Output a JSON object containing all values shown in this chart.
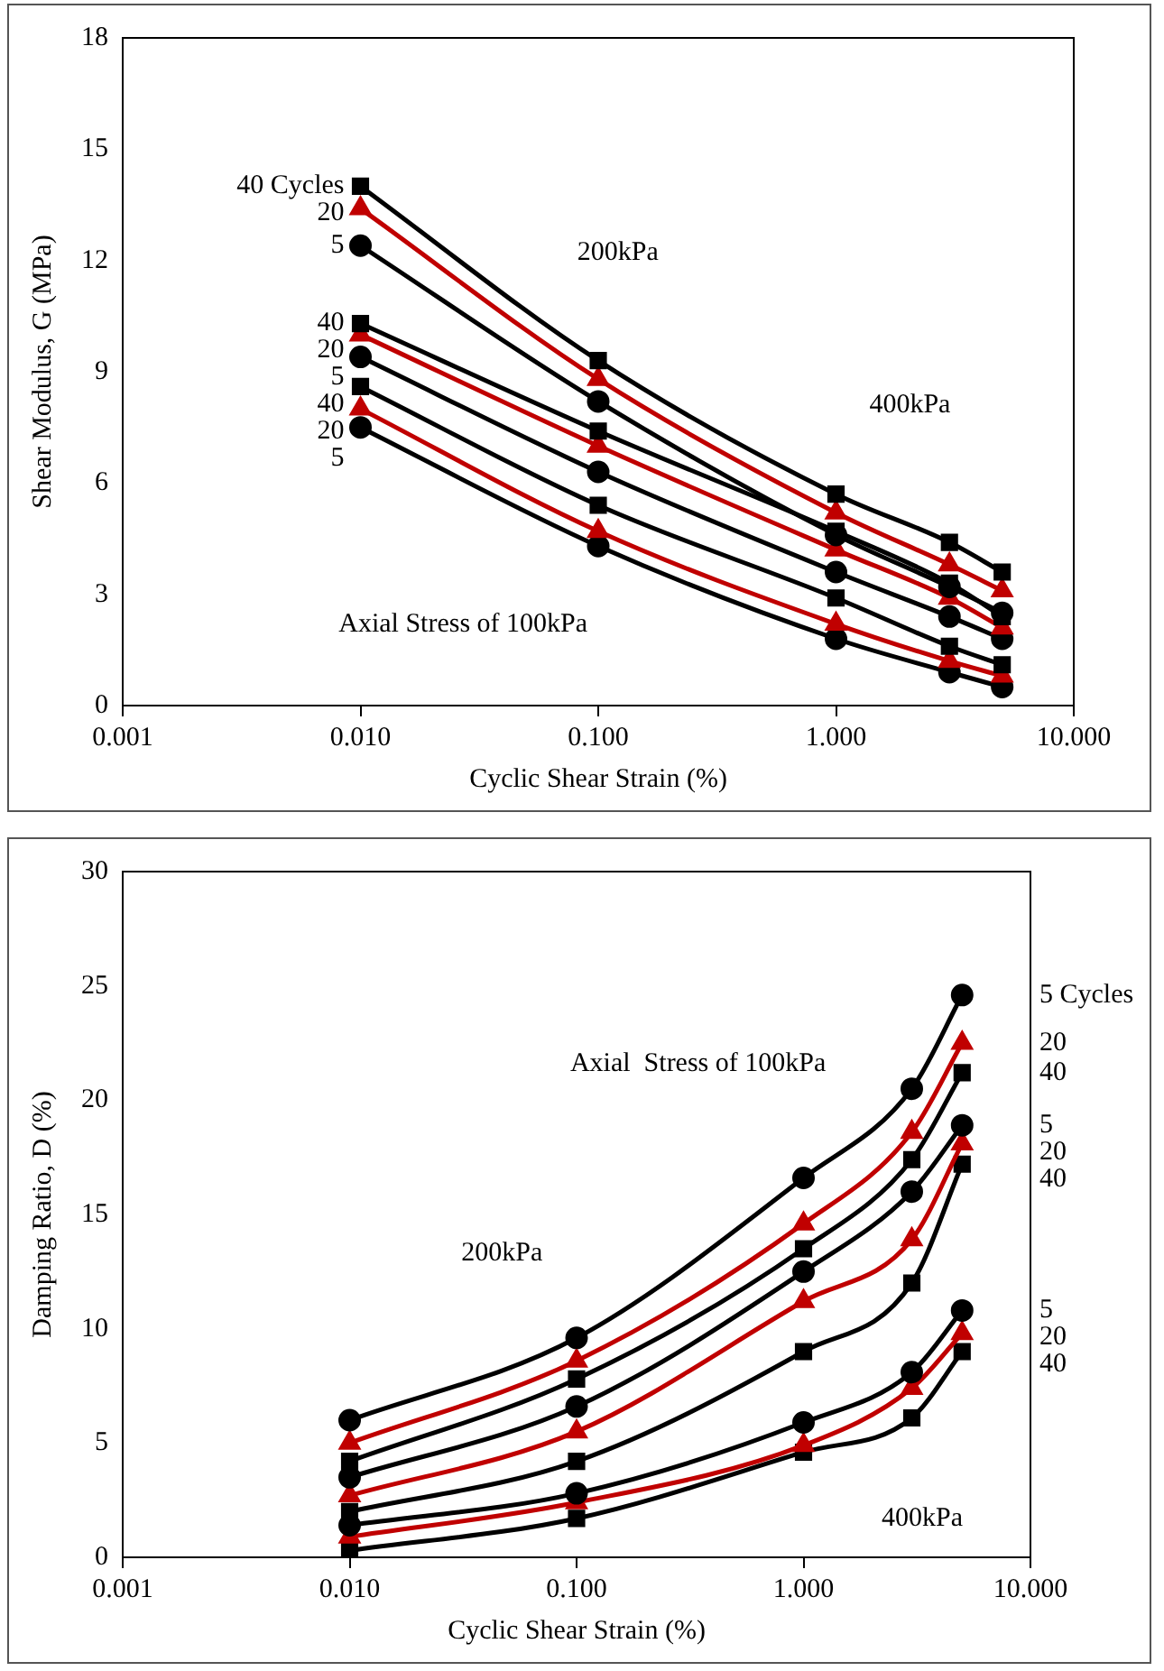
{
  "chart_data": [
    {
      "type": "line",
      "xlabel": "Cyclic Shear Strain (%)",
      "ylabel": "Shear Modulus, G (MPa)",
      "log": "x",
      "grid": false,
      "legend": false,
      "xlim": [
        0.001,
        10
      ],
      "xticks": [
        {
          "value": 0.001,
          "label": "0.001"
        },
        {
          "value": 0.01,
          "label": "0.010"
        },
        {
          "value": 0.1,
          "label": "0.100"
        },
        {
          "value": 1,
          "label": "1.000"
        },
        {
          "value": 10,
          "label": "10.000"
        }
      ],
      "ylim": [
        0,
        18
      ],
      "yticks": [
        0,
        3,
        6,
        9,
        12,
        15,
        18
      ],
      "x": [
        0.01,
        0.1,
        1,
        3,
        5
      ],
      "series": [
        {
          "name": "40 Cycles",
          "color": "#000000",
          "marker": "square",
          "values": [
            14.0,
            9.3,
            5.7,
            4.4,
            3.6
          ]
        },
        {
          "name": "20",
          "color": "#c00000",
          "marker": "triangle",
          "values": [
            13.4,
            8.8,
            5.2,
            3.8,
            3.1
          ]
        },
        {
          "name": "5",
          "color": "#000000",
          "marker": "circle",
          "values": [
            12.4,
            8.2,
            4.6,
            3.2,
            2.5
          ]
        },
        {
          "name": "40",
          "color": "#000000",
          "marker": "square",
          "values": [
            10.3,
            7.4,
            4.7,
            3.3,
            2.4
          ]
        },
        {
          "name": "20",
          "color": "#c00000",
          "marker": "triangle",
          "values": [
            10.0,
            7.0,
            4.2,
            2.9,
            2.1
          ]
        },
        {
          "name": "5",
          "color": "#000000",
          "marker": "circle",
          "values": [
            9.4,
            6.3,
            3.6,
            2.4,
            1.8
          ]
        },
        {
          "name": "40",
          "color": "#000000",
          "marker": "square",
          "values": [
            8.6,
            5.4,
            2.9,
            1.6,
            1.1
          ]
        },
        {
          "name": "20",
          "color": "#c00000",
          "marker": "triangle",
          "values": [
            8.0,
            4.7,
            2.2,
            1.2,
            0.8
          ]
        },
        {
          "name": "5",
          "color": "#000000",
          "marker": "circle",
          "values": [
            7.5,
            4.3,
            1.8,
            0.9,
            0.5
          ]
        }
      ],
      "annotations": [
        "200kPa",
        "400kPa",
        "Axial Stress of 100kPa"
      ]
    },
    {
      "type": "line",
      "xlabel": "Cyclic Shear Strain (%)",
      "ylabel": "Damping Ratio, D (%)",
      "log": "x",
      "grid": false,
      "legend": false,
      "xlim": [
        0.001,
        10
      ],
      "xticks": [
        {
          "value": 0.001,
          "label": "0.001"
        },
        {
          "value": 0.01,
          "label": "0.010"
        },
        {
          "value": 0.1,
          "label": "0.100"
        },
        {
          "value": 1,
          "label": "1.000"
        },
        {
          "value": 10,
          "label": "10.000"
        }
      ],
      "ylim": [
        0,
        30
      ],
      "yticks": [
        0,
        5,
        10,
        15,
        20,
        25,
        30
      ],
      "x": [
        0.01,
        0.1,
        1,
        3,
        5
      ],
      "series": [
        {
          "name": "5 Cycles",
          "color": "#000000",
          "marker": "circle",
          "values": [
            6.0,
            9.6,
            16.6,
            20.5,
            24.6
          ]
        },
        {
          "name": "20",
          "color": "#c00000",
          "marker": "triangle",
          "values": [
            5.0,
            8.6,
            14.6,
            18.6,
            22.5
          ]
        },
        {
          "name": "40",
          "color": "#000000",
          "marker": "square",
          "values": [
            4.2,
            7.8,
            13.5,
            17.4,
            21.2
          ]
        },
        {
          "name": "5",
          "color": "#000000",
          "marker": "circle",
          "values": [
            3.5,
            6.6,
            12.5,
            16.0,
            18.9
          ]
        },
        {
          "name": "20",
          "color": "#c00000",
          "marker": "triangle",
          "values": [
            2.7,
            5.5,
            11.2,
            13.9,
            18.1
          ]
        },
        {
          "name": "40",
          "color": "#000000",
          "marker": "square",
          "values": [
            2.0,
            4.2,
            9.0,
            12.0,
            17.2
          ]
        },
        {
          "name": "5",
          "color": "#000000",
          "marker": "circle",
          "values": [
            1.4,
            2.8,
            5.9,
            8.1,
            10.8
          ]
        },
        {
          "name": "20",
          "color": "#c00000",
          "marker": "triangle",
          "values": [
            0.9,
            2.4,
            4.9,
            7.4,
            9.8
          ]
        },
        {
          "name": "40",
          "color": "#000000",
          "marker": "square",
          "values": [
            0.3,
            1.7,
            4.6,
            6.1,
            9.0
          ]
        }
      ],
      "annotations": [
        "Axial  Stress of 100kPa",
        "200kPa",
        "400kPa"
      ]
    }
  ]
}
